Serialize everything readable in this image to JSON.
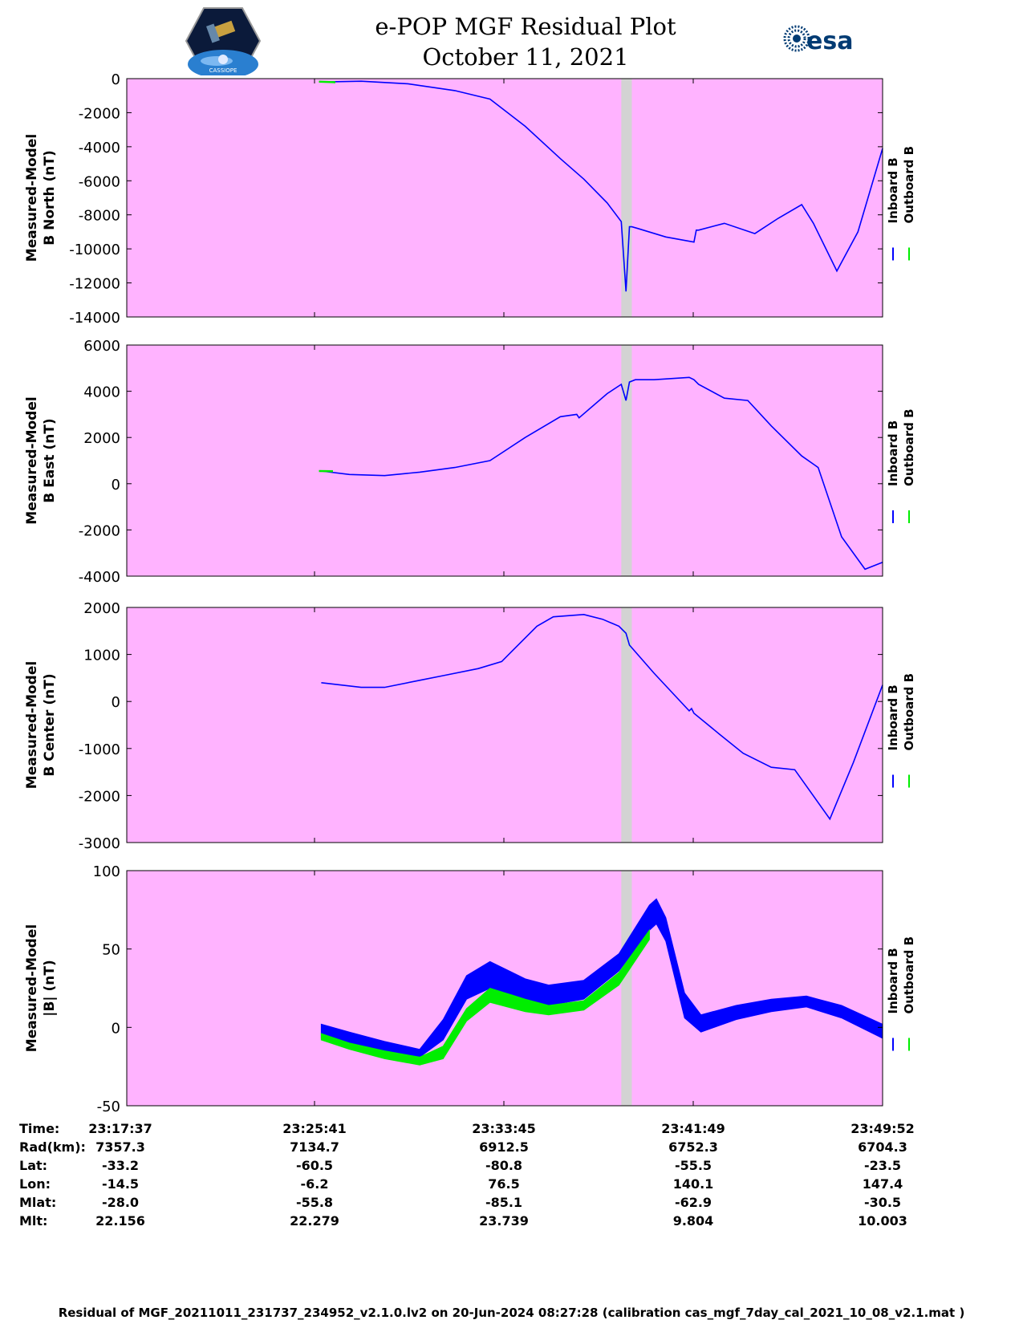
{
  "header": {
    "title_line1": "e-POP MGF Residual Plot",
    "title_line2": "October 11, 2021",
    "logo_left_text": "CASSIOPE",
    "logo_right_text": "esa"
  },
  "colors": {
    "panel_bg": "#ffb3ff",
    "gap_band": "#d3d3d3",
    "inboard": "#0000ff",
    "outboard": "#00ee00"
  },
  "chart_data": [
    {
      "type": "line",
      "ylabel": [
        "Measured-Model",
        "B North (nT)"
      ],
      "ylim": [
        -14000,
        0
      ],
      "yticks": [
        0,
        -2000,
        -4000,
        -6000,
        -8000,
        -10000,
        -12000,
        -14000
      ],
      "x_range_minutes": [
        0,
        32.25
      ],
      "gap_band_minutes": [
        21.1,
        21.55
      ],
      "legend": [
        "Inboard B",
        "Outboard B"
      ],
      "series": [
        {
          "name": "Inboard B",
          "x": [
            8.3,
            10,
            12,
            14,
            15.5,
            17,
            18.5,
            19.5,
            20.5,
            21.1,
            21.3,
            21.45,
            21.55,
            21.8,
            23,
            24.2,
            24.3,
            24.4,
            25.5,
            26.8,
            27.8,
            28.8,
            29.3,
            30.3,
            31.2,
            32.25
          ],
          "values": [
            -200,
            -150,
            -300,
            -700,
            -1200,
            -2800,
            -4700,
            -5900,
            -7300,
            -8400,
            -12500,
            -8700,
            -8700,
            -8800,
            -9300,
            -9600,
            -8900,
            -8900,
            -8500,
            -9100,
            -8200,
            -7400,
            -8500,
            -11300,
            -9000,
            -4100
          ]
        },
        {
          "name": "Outboard B",
          "x": [
            8.2,
            8.9
          ],
          "values": [
            -180,
            -210
          ]
        }
      ]
    },
    {
      "type": "line",
      "ylabel": [
        "Measured-Model",
        "B East (nT)"
      ],
      "ylim": [
        -4000,
        6000
      ],
      "yticks": [
        6000,
        4000,
        2000,
        0,
        -2000,
        -4000
      ],
      "x_range_minutes": [
        0,
        32.25
      ],
      "gap_band_minutes": [
        21.1,
        21.55
      ],
      "legend": [
        "Inboard B",
        "Outboard B"
      ],
      "series": [
        {
          "name": "Inboard B",
          "x": [
            8.3,
            9.5,
            11,
            12.5,
            14,
            15.5,
            17,
            18.5,
            19.2,
            19.3,
            20.5,
            21.1,
            21.3,
            21.45,
            21.7,
            22.5,
            24,
            24.2,
            24.4,
            25.5,
            26.5,
            27.5,
            28.8,
            29.5,
            30.5,
            31.5,
            32.25
          ],
          "values": [
            550,
            400,
            350,
            500,
            700,
            1000,
            2000,
            2900,
            3000,
            2850,
            3900,
            4300,
            3600,
            4400,
            4500,
            4500,
            4600,
            4500,
            4300,
            3700,
            3600,
            2500,
            1200,
            700,
            -2300,
            -3700,
            -3400
          ]
        },
        {
          "name": "Outboard B",
          "x": [
            8.2,
            8.8
          ],
          "values": [
            550,
            540
          ]
        }
      ]
    },
    {
      "type": "line",
      "ylabel": [
        "Measured-Model",
        "B Center (nT)"
      ],
      "ylim": [
        -3000,
        2000
      ],
      "yticks": [
        2000,
        1000,
        0,
        -1000,
        -2000,
        -3000
      ],
      "x_range_minutes": [
        0,
        32.25
      ],
      "gap_band_minutes": [
        21.1,
        21.55
      ],
      "legend": [
        "Inboard B",
        "Outboard B"
      ],
      "series": [
        {
          "name": "Inboard B",
          "x": [
            8.3,
            10,
            11,
            12.5,
            13.5,
            15,
            16,
            17.5,
            18.2,
            19.5,
            20.3,
            21,
            21.3,
            21.45,
            22.5,
            24,
            24.1,
            24.2,
            25.3,
            26.3,
            27.5,
            28.5,
            30,
            31,
            32.25
          ],
          "values": [
            400,
            300,
            300,
            450,
            550,
            700,
            850,
            1600,
            1800,
            1850,
            1750,
            1600,
            1450,
            1200,
            600,
            -200,
            -150,
            -250,
            -700,
            -1100,
            -1400,
            -1450,
            -2500,
            -1300,
            350
          ]
        }
      ]
    },
    {
      "type": "area",
      "ylabel": [
        "Measured-Model",
        "|B| (nT)"
      ],
      "ylim": [
        -50,
        100
      ],
      "yticks": [
        100,
        50,
        0,
        -50
      ],
      "x_range_minutes": [
        0,
        32.25
      ],
      "gap_band_minutes": [
        21.1,
        21.55
      ],
      "legend": [
        "Inboard B",
        "Outboard B"
      ],
      "series": [
        {
          "name": "Inboard B",
          "x": [
            8.3,
            9.5,
            11,
            12.5,
            13.5,
            14.5,
            15.5,
            17,
            18,
            19.5,
            21,
            22.3,
            22.6,
            23,
            23.8,
            24.5,
            26,
            27.5,
            29,
            30.5,
            32.25
          ],
          "upper": [
            2,
            -3,
            -9,
            -14,
            5,
            33,
            42,
            31,
            27,
            30,
            47,
            78,
            82,
            70,
            22,
            8,
            14,
            18,
            20,
            14,
            2
          ],
          "lower": [
            -7,
            -12,
            -16,
            -19,
            -8,
            18,
            25,
            18,
            14,
            18,
            36,
            62,
            66,
            55,
            6,
            -3,
            5,
            10,
            13,
            6,
            -7
          ]
        },
        {
          "name": "Outboard B",
          "x": [
            8.3,
            9.5,
            11,
            12.5,
            13.5,
            14.5,
            15.5,
            17,
            18,
            19.5,
            21,
            22.3
          ],
          "upper": [
            -4,
            -10,
            -15,
            -19,
            -12,
            12,
            25,
            18,
            14,
            17,
            35,
            62
          ],
          "lower": [
            -8,
            -14,
            -20,
            -24,
            -20,
            4,
            16,
            10,
            8,
            11,
            27,
            56
          ]
        }
      ]
    }
  ],
  "info_table": {
    "labels": [
      "Time:",
      "Rad(km):",
      "Lat:",
      "Lon:",
      "Mlat:",
      "Mlt:"
    ],
    "columns": [
      [
        "23:17:37",
        "7357.3",
        "-33.2",
        "-14.5",
        "-28.0",
        "22.156"
      ],
      [
        "23:25:41",
        "7134.7",
        "-60.5",
        "-6.2",
        "-55.8",
        "22.279"
      ],
      [
        "23:33:45",
        "6912.5",
        "-80.8",
        "76.5",
        "-85.1",
        "23.739"
      ],
      [
        "23:41:49",
        "6752.3",
        "-55.5",
        "140.1",
        "-62.9",
        "9.804"
      ],
      [
        "23:49:52",
        "6704.3",
        "-23.5",
        "147.4",
        "-30.5",
        "10.003"
      ]
    ]
  },
  "footer": "Residual of MGF_20211011_231737_234952_v2.1.0.lv2 on 20-Jun-2024 08:27:28 (calibration cas_mgf_7day_cal_2021_10_08_v2.1.mat )"
}
